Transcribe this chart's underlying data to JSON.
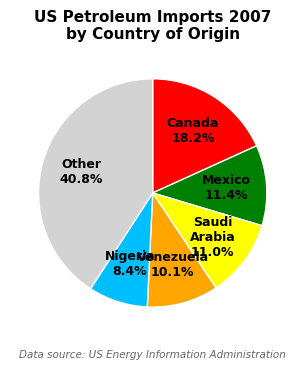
{
  "title": "US Petroleum Imports 2007\nby Country of Origin",
  "title_fontsize": 11,
  "source_text": "Data source: US Energy Information Administration",
  "source_fontsize": 7.5,
  "label_display": [
    "Canada\n18.2%",
    "Mexico\n11.4%",
    "Saudi\nArabia\n11.0%",
    "Venezuela\n10.1%",
    "Nigeria\n8.4%",
    "Other\n40.8%"
  ],
  "values": [
    18.2,
    11.4,
    11.0,
    10.1,
    8.4,
    40.8
  ],
  "colors": [
    "#ff0000",
    "#008000",
    "#ffff00",
    "#ffa500",
    "#00bfff",
    "#d3d3d3"
  ],
  "startangle": 90,
  "background_color": "#ffffff",
  "label_fontsize": 9,
  "label_fontweight": "bold",
  "labeldistance": 0.65
}
